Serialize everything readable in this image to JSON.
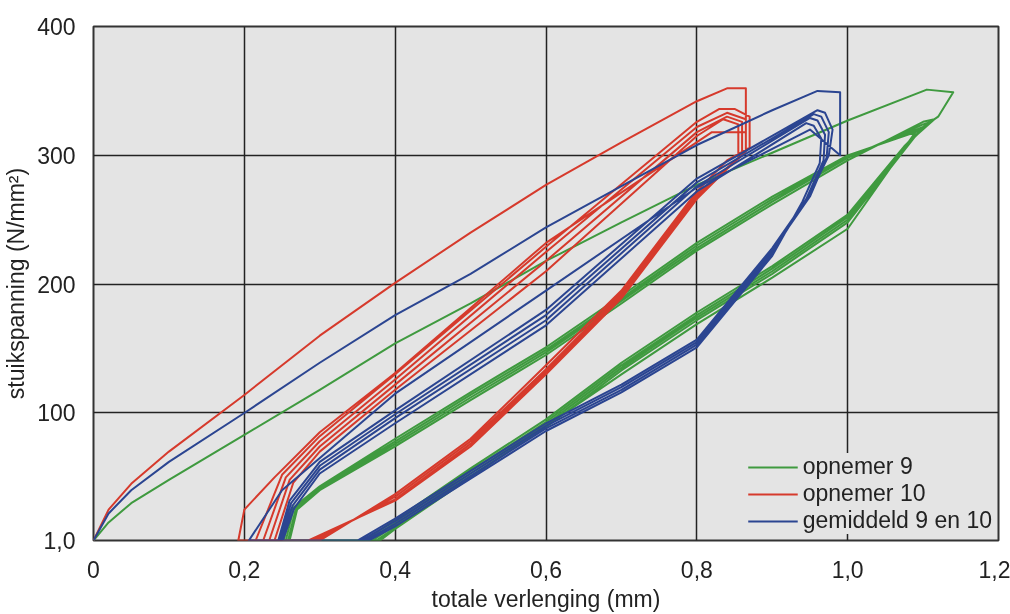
{
  "chart_data": {
    "type": "line",
    "xlabel": "totale verlenging (mm)",
    "ylabel": "stuikspanning (N/mm²)",
    "xlim": [
      0,
      1.2
    ],
    "ylim": [
      1,
      400
    ],
    "xticks": [
      0,
      {
        "value": 0.2,
        "label": "0,2"
      },
      {
        "value": 0.4,
        "label": "0,4"
      },
      {
        "value": 0.6,
        "label": "0,6"
      },
      {
        "value": 0.8,
        "label": "0,8"
      },
      {
        "value": 1.0,
        "label": "1,0"
      },
      {
        "value": 1.2,
        "label": "1,2"
      }
    ],
    "yticks": [
      {
        "value": 1,
        "label": "1,0"
      },
      100,
      200,
      300,
      400
    ],
    "grid": true,
    "legend": "bottom right",
    "line_style": "solid",
    "marker": "none",
    "series": [
      {
        "name": "opnemer 9",
        "color": "#3f9a3f",
        "x": [
          0,
          0.02,
          0.05,
          0.1,
          0.2,
          0.3,
          0.4,
          0.5,
          0.6,
          0.7,
          0.8,
          0.9,
          1.0,
          1.105,
          1.14,
          1.12,
          1.09,
          1.0,
          0.9,
          0.8,
          0.7,
          0.6,
          0.5,
          0.4,
          0.38,
          0.26,
          0.27,
          0.3,
          0.4,
          0.5,
          0.6,
          0.7,
          0.8,
          0.9,
          1.0,
          1.1,
          1.115,
          1.09,
          1.0,
          0.9,
          0.8,
          0.7,
          0.6,
          0.5,
          0.4,
          0.375,
          0.258,
          0.268,
          0.3,
          0.4,
          0.5,
          0.6,
          0.7,
          0.8,
          0.9,
          1.0,
          1.1,
          1.11,
          1.085,
          1.0,
          0.9,
          0.8,
          0.7,
          0.6,
          0.5,
          0.4,
          0.37,
          0.255,
          0.265,
          0.3,
          0.4,
          0.5,
          0.6,
          0.7,
          0.8,
          0.9,
          1.0,
          1.1,
          1.105,
          1.08,
          1.0,
          0.9,
          0.8,
          0.7,
          0.6,
          0.5,
          0.4,
          0.365,
          0.252,
          0.262,
          0.3,
          0.4,
          0.5,
          0.6,
          0.7,
          0.8,
          0.9,
          1.0,
          1.095,
          1.1,
          1.075,
          1.0,
          0.9,
          0.8,
          0.7,
          0.6,
          0.5,
          0.4,
          0.36
        ],
        "values": [
          1,
          15,
          30,
          48,
          83,
          118,
          154,
          185,
          218,
          248,
          277,
          302,
          327,
          351,
          349,
          330,
          318,
          243,
          205,
          169,
          130,
          90,
          50,
          10,
          1,
          1,
          25,
          40,
          74,
          110,
          145,
          185,
          226,
          262,
          296,
          326,
          328,
          315,
          248,
          208,
          172,
          133,
          89,
          51,
          11,
          1,
          1,
          25,
          41,
          76,
          112,
          147,
          187,
          228,
          264,
          298,
          324,
          326,
          312,
          250,
          210,
          174,
          135,
          91,
          53,
          13,
          1,
          1,
          25,
          42,
          78,
          114,
          149,
          189,
          230,
          266,
          299,
          322,
          324,
          310,
          252,
          212,
          176,
          137,
          93,
          55,
          15,
          1,
          1,
          25,
          43,
          80,
          116,
          151,
          191,
          232,
          268,
          300,
          319,
          321,
          307,
          254,
          214,
          178,
          139,
          95,
          57,
          17,
          1
        ]
      },
      {
        "name": "opnemer 10",
        "color": "#d63a2c",
        "x": [
          0,
          0.02,
          0.05,
          0.1,
          0.2,
          0.3,
          0.4,
          0.5,
          0.6,
          0.7,
          0.8,
          0.84,
          0.865,
          0.865,
          0.82,
          0.6,
          0.4,
          0.3,
          0.24,
          0.2,
          0.192,
          0.3,
          0.4,
          0.5,
          0.6,
          0.7,
          0.8,
          0.84,
          0.87,
          0.87,
          0.85,
          0.83,
          0.8,
          0.6,
          0.4,
          0.3,
          0.25,
          0.215,
          0.295,
          0.4,
          0.5,
          0.6,
          0.7,
          0.8,
          0.865,
          0.865,
          0.84,
          0.8,
          0.6,
          0.4,
          0.3,
          0.255,
          0.225,
          0.29,
          0.4,
          0.5,
          0.6,
          0.7,
          0.8,
          0.86,
          0.86,
          0.84,
          0.8,
          0.6,
          0.4,
          0.3,
          0.26,
          0.233,
          0.285,
          0.4,
          0.5,
          0.6,
          0.7,
          0.8,
          0.855,
          0.855,
          0.835,
          0.8,
          0.6,
          0.4,
          0.3,
          0.265,
          0.24
        ],
        "values": [
          1,
          25,
          45,
          70,
          114,
          160,
          201,
          240,
          277,
          310,
          342,
          352,
          352,
          318,
          318,
          232,
          131,
          85,
          50,
          25,
          1,
          1,
          37,
          80,
          137,
          195,
          272,
          296,
          306,
          330,
          336,
          336,
          326,
          229,
          130,
          82,
          52,
          1,
          1,
          35,
          78,
          134,
          193,
          270,
          303,
          328,
          333,
          322,
          225,
          126,
          78,
          50,
          1,
          1,
          33,
          76,
          132,
          191,
          268,
          300,
          326,
          330,
          318,
          218,
          122,
          74,
          48,
          1,
          1,
          32,
          74,
          130,
          189,
          266,
          298,
          324,
          328,
          315,
          210,
          118,
          70,
          46,
          1
        ]
      },
      {
        "name": "gemiddeld 9 en 10",
        "color": "#2b4591",
        "x": [
          0,
          0.02,
          0.05,
          0.1,
          0.2,
          0.3,
          0.4,
          0.5,
          0.6,
          0.7,
          0.8,
          0.9,
          0.96,
          0.99,
          0.99,
          0.95,
          0.8,
          0.6,
          0.4,
          0.25,
          0.206,
          0.35,
          0.4,
          0.5,
          0.6,
          0.7,
          0.8,
          0.9,
          0.95,
          0.975,
          0.98,
          0.97,
          0.96,
          0.8,
          0.6,
          0.4,
          0.3,
          0.26,
          0.245,
          0.355,
          0.4,
          0.5,
          0.6,
          0.7,
          0.8,
          0.9,
          0.95,
          0.972,
          0.975,
          0.965,
          0.955,
          0.8,
          0.6,
          0.4,
          0.3,
          0.262,
          0.247,
          0.36,
          0.4,
          0.5,
          0.6,
          0.7,
          0.8,
          0.9,
          0.945,
          0.968,
          0.97,
          0.96,
          0.95,
          0.8,
          0.6,
          0.4,
          0.3,
          0.264,
          0.249,
          0.365,
          0.4,
          0.5,
          0.6,
          0.7,
          0.8,
          0.9,
          0.94,
          0.963,
          0.965,
          0.955,
          0.945,
          0.8,
          0.6,
          0.4,
          0.3,
          0.266,
          0.251
        ],
        "values": [
          1,
          22,
          40,
          62,
          100,
          139,
          176,
          208,
          244,
          276,
          308,
          335,
          350,
          349,
          300,
          320,
          275,
          195,
          115,
          40,
          1,
          1,
          18,
          55,
          92,
          122,
          157,
          228,
          270,
          300,
          320,
          333,
          335,
          282,
          180,
          102,
          62,
          32,
          1,
          1,
          16,
          53,
          90,
          120,
          155,
          226,
          268,
          298,
          318,
          330,
          332,
          279,
          176,
          99,
          59,
          30,
          1,
          1,
          14,
          51,
          88,
          118,
          153,
          224,
          266,
          296,
          316,
          327,
          329,
          276,
          172,
          96,
          56,
          28,
          1,
          1,
          12,
          49,
          86,
          116,
          151,
          222,
          264,
          294,
          313,
          323,
          325,
          272,
          168,
          92,
          53,
          26,
          1
        ]
      }
    ]
  }
}
